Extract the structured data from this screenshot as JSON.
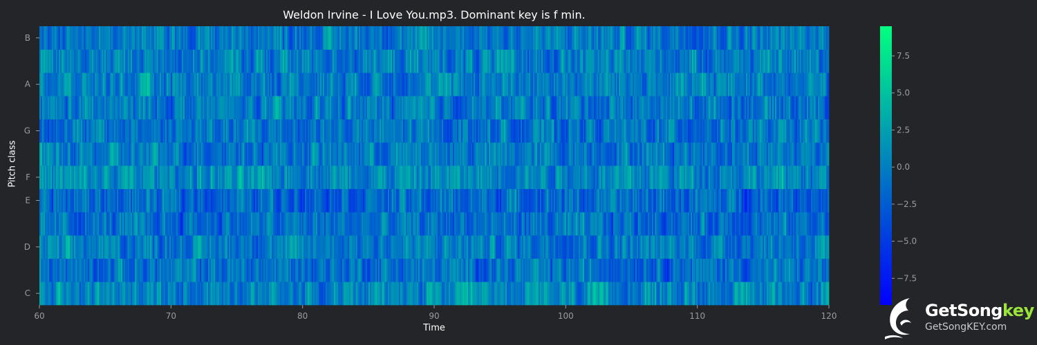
{
  "chart_data": {
    "type": "heatmap",
    "title": "Weldon Irvine - I Love You.mp3. Dominant key is f min.",
    "xlabel": "Time",
    "ylabel": "Pitch class",
    "xlim": [
      60,
      120
    ],
    "x_ticks": [
      60,
      70,
      80,
      90,
      100,
      110,
      120
    ],
    "y_ticks": [
      "C",
      "D",
      "E",
      "F",
      "G",
      "A",
      "B"
    ],
    "pitch_classes": [
      "C",
      "C#",
      "D",
      "D#",
      "E",
      "F",
      "F#",
      "G",
      "G#",
      "A",
      "A#",
      "B"
    ],
    "colorbar": {
      "range": [
        -9.3,
        9.5
      ],
      "ticks": [
        -7.5,
        -5.0,
        -2.5,
        0.0,
        2.5,
        5.0,
        7.5
      ],
      "colors": [
        "#0000ff",
        "#00ff80"
      ]
    },
    "grid": false
  },
  "logo": {
    "name_main": "GetSong",
    "name_accent": "key",
    "url": "GetSongKEY.com"
  },
  "colors": {
    "background": "#232529",
    "tick_label": "#9a9ca0",
    "label": "#ffffff"
  }
}
